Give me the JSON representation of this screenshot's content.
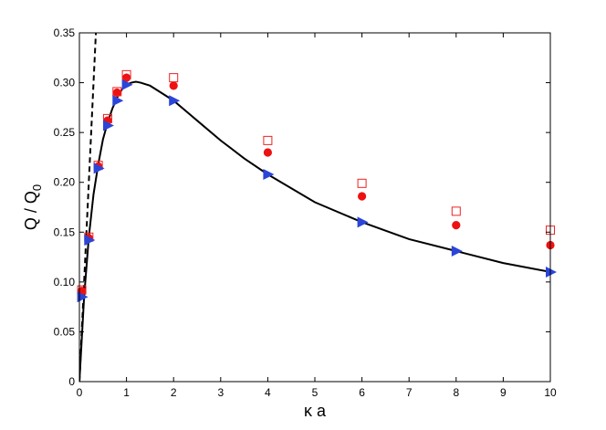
{
  "chart_data": {
    "type": "scatter",
    "xlabel": "κ a",
    "ylabel_main": "Q / Q",
    "ylabel_sub": "0",
    "xlim": [
      0,
      10
    ],
    "ylim": [
      0,
      0.35
    ],
    "x_ticks": [
      0,
      1,
      2,
      3,
      4,
      5,
      6,
      7,
      8,
      9,
      10
    ],
    "x_tick_labels": [
      "0",
      "1",
      "2",
      "3",
      "4",
      "5",
      "6",
      "7",
      "8",
      "9",
      "10"
    ],
    "y_ticks": [
      0,
      0.05,
      0.1,
      0.15,
      0.2,
      0.25,
      0.3,
      0.35
    ],
    "y_tick_labels": [
      "0",
      "0.05",
      "0.10",
      "0.15",
      "0.20",
      "0.25",
      "0.30",
      "0.35"
    ],
    "grid": false,
    "legend": "none",
    "series": [
      {
        "style": "solid-line",
        "color": "#000000",
        "x": [
          0,
          0.1,
          0.2,
          0.3,
          0.4,
          0.5,
          0.6,
          0.7,
          0.8,
          0.9,
          1.0,
          1.1,
          1.2,
          1.3,
          1.5,
          1.7,
          2.0,
          2.5,
          3.0,
          3.5,
          4.0,
          5.0,
          6.0,
          7.0,
          8.0,
          9.0,
          10.0
        ],
        "y": [
          0,
          0.085,
          0.145,
          0.188,
          0.218,
          0.243,
          0.26,
          0.274,
          0.285,
          0.293,
          0.298,
          0.3,
          0.301,
          0.3,
          0.297,
          0.291,
          0.282,
          0.262,
          0.242,
          0.224,
          0.208,
          0.18,
          0.16,
          0.143,
          0.131,
          0.119,
          0.11
        ]
      },
      {
        "style": "dashed-line",
        "color": "#000000",
        "x": [
          0,
          0.35
        ],
        "y": [
          0,
          0.35
        ]
      },
      {
        "style": "filled-circle",
        "color": "#ee1111",
        "x": [
          0.05,
          0.2,
          0.4,
          0.6,
          0.8,
          1,
          2,
          4,
          6,
          8,
          10
        ],
        "y": [
          0.091,
          0.144,
          0.216,
          0.262,
          0.29,
          0.305,
          0.297,
          0.23,
          0.186,
          0.157,
          0.137
        ]
      },
      {
        "style": "open-square",
        "color": "#ee2222",
        "x": [
          0.05,
          0.2,
          0.4,
          0.6,
          0.8,
          1,
          2,
          4,
          6,
          8,
          10
        ],
        "y": [
          0.092,
          0.145,
          0.217,
          0.264,
          0.291,
          0.308,
          0.305,
          0.242,
          0.199,
          0.171,
          0.152
        ]
      },
      {
        "style": "right-triangle",
        "color": "#2a45d8",
        "x": [
          0.05,
          0.2,
          0.4,
          0.6,
          0.8,
          1,
          2,
          4,
          6,
          8,
          10
        ],
        "y": [
          0.085,
          0.142,
          0.214,
          0.257,
          0.282,
          0.298,
          0.282,
          0.208,
          0.16,
          0.131,
          0.11
        ]
      }
    ]
  }
}
